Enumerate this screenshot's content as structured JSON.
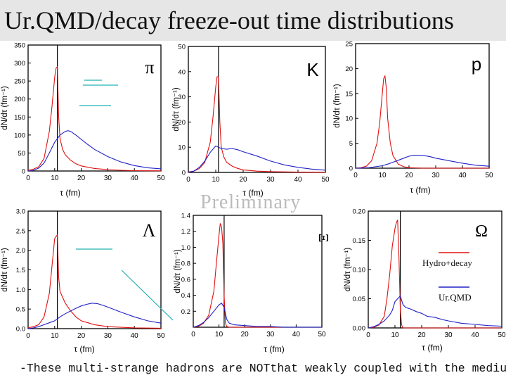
{
  "title": "Ur.QMD/decay freeze-out time distributions",
  "watermark": "Preliminary",
  "footer": "-These multi-strange hadrons are NOTthat weakly coupled with the medium!",
  "legend": {
    "hydro": "Hydro+decay",
    "urqmd": "Ur.QMD"
  },
  "colors": {
    "hydro": "#e01010",
    "urqmd": "#2020c8",
    "vline": "#000000",
    "decor": "#20b0b0"
  },
  "chart_data": [
    {
      "id": "pi",
      "type": "line",
      "particle": "π",
      "xlabel": "τ (fm)",
      "ylabel": "dN/dτ (fm⁻¹)",
      "xlim": [
        0,
        50
      ],
      "ylim": [
        0,
        350
      ],
      "xticks": [
        "0",
        "10",
        "20",
        "30",
        "40",
        "50"
      ],
      "yticks": [
        "0",
        "50",
        "100",
        "150",
        "200",
        "250",
        "300",
        "350"
      ],
      "vline_x": 11,
      "series": [
        {
          "name": "Hydro+decay",
          "x": [
            0,
            2,
            4,
            6,
            8,
            9,
            10,
            10.5,
            11,
            11.5,
            12,
            13,
            14,
            16,
            18,
            20,
            25,
            30,
            35,
            40,
            45,
            50
          ],
          "y": [
            2,
            5,
            12,
            35,
            110,
            180,
            260,
            285,
            290,
            150,
            90,
            60,
            45,
            30,
            20,
            14,
            7,
            4,
            2,
            1,
            0.5,
            0.3
          ]
        },
        {
          "name": "Ur.QMD",
          "x": [
            0,
            2,
            4,
            6,
            8,
            10,
            12,
            14,
            15,
            16,
            18,
            20,
            22,
            25,
            30,
            35,
            40,
            45,
            50
          ],
          "y": [
            0,
            2,
            8,
            22,
            50,
            80,
            100,
            110,
            112,
            110,
            100,
            88,
            76,
            60,
            40,
            25,
            15,
            9,
            6
          ]
        }
      ]
    },
    {
      "id": "k",
      "type": "line",
      "particle": "K",
      "xlabel": "τ (fm)",
      "ylabel": "dN/dτ (fm⁻¹)",
      "xlim": [
        0,
        50
      ],
      "ylim": [
        0,
        50
      ],
      "xticks": [
        "0",
        "10",
        "20",
        "30",
        "40",
        "50"
      ],
      "yticks": [
        "0",
        "10",
        "20",
        "30",
        "40",
        "50"
      ],
      "vline_x": 11,
      "series": [
        {
          "name": "Hydro+decay",
          "x": [
            0,
            2,
            4,
            6,
            8,
            9,
            10,
            10.5,
            11,
            11.5,
            12,
            13,
            14,
            16,
            18,
            20,
            25,
            30,
            40,
            50
          ],
          "y": [
            0.2,
            0.5,
            1.5,
            4,
            12,
            22,
            34,
            38,
            38,
            20,
            10,
            6,
            4,
            2.5,
            1.6,
            1,
            0.5,
            0.3,
            0.1,
            0.05
          ]
        },
        {
          "name": "Ur.QMD",
          "x": [
            0,
            2,
            4,
            6,
            8,
            10,
            12,
            14,
            16,
            18,
            20,
            25,
            30,
            35,
            40,
            45,
            50
          ],
          "y": [
            0,
            0.5,
            2,
            4.5,
            8,
            10.5,
            9.5,
            9.2,
            9.5,
            9,
            8.2,
            6.5,
            4.5,
            3,
            2,
            1.3,
            0.9
          ]
        }
      ]
    },
    {
      "id": "p",
      "type": "line",
      "particle": "p",
      "xlabel": "τ (fm)",
      "ylabel": "dN/dτ (fm⁻¹)",
      "xlim": [
        0,
        50
      ],
      "ylim": [
        0,
        25
      ],
      "xticks": [
        "0",
        "10",
        "20",
        "30",
        "40",
        "50"
      ],
      "yticks": [
        "0",
        "5",
        "10",
        "15",
        "20",
        "25"
      ],
      "vline_x": null,
      "series": [
        {
          "name": "Hydro+decay",
          "x": [
            0,
            2,
            4,
            6,
            8,
            9,
            10,
            10.5,
            11,
            11.5,
            12,
            13,
            14,
            16,
            18,
            20,
            25,
            30,
            40,
            50
          ],
          "y": [
            0,
            0.1,
            0.4,
            1.5,
            5,
            9,
            15,
            18,
            18.5,
            16,
            10,
            5,
            2.5,
            0.8,
            0.3,
            0.1,
            0,
            0,
            0,
            0
          ]
        },
        {
          "name": "Ur.QMD",
          "x": [
            0,
            5,
            10,
            12,
            14,
            16,
            18,
            20,
            22,
            24,
            26,
            28,
            30,
            35,
            40,
            45,
            50
          ],
          "y": [
            0,
            0.1,
            0.5,
            0.8,
            1.2,
            1.6,
            2,
            2.4,
            2.6,
            2.6,
            2.5,
            2.3,
            2,
            1.5,
            1,
            0.6,
            0.4
          ]
        }
      ]
    },
    {
      "id": "lambda",
      "type": "line",
      "particle": "Λ",
      "xlabel": "τ (fm)",
      "ylabel": "dN/dτ (fm⁻¹)",
      "xlim": [
        0,
        50
      ],
      "ylim": [
        0,
        3.0
      ],
      "xticks": [
        "0",
        "10",
        "20",
        "30",
        "40",
        "50"
      ],
      "yticks": [
        "0.0",
        "0.5",
        "1.0",
        "1.5",
        "2.0",
        "2.5",
        "3.0"
      ],
      "vline_x": 11,
      "series": [
        {
          "name": "Hydro+decay",
          "x": [
            0,
            2,
            4,
            6,
            8,
            9,
            10,
            10.5,
            11,
            11.5,
            12,
            13,
            14,
            16,
            18,
            20,
            25,
            30,
            40,
            50
          ],
          "y": [
            0.02,
            0.05,
            0.1,
            0.3,
            0.9,
            1.6,
            2.3,
            2.35,
            2.4,
            1.3,
            0.95,
            0.8,
            0.65,
            0.45,
            0.3,
            0.2,
            0.1,
            0.05,
            0.02,
            0.01
          ]
        },
        {
          "name": "Ur.QMD",
          "x": [
            0,
            2,
            4,
            6,
            8,
            10,
            12,
            14,
            16,
            18,
            20,
            22,
            24,
            26,
            28,
            30,
            35,
            40,
            45,
            50
          ],
          "y": [
            0,
            0.02,
            0.05,
            0.1,
            0.15,
            0.2,
            0.3,
            0.38,
            0.45,
            0.52,
            0.58,
            0.62,
            0.65,
            0.64,
            0.6,
            0.55,
            0.42,
            0.3,
            0.2,
            0.14
          ]
        }
      ]
    },
    {
      "id": "xi",
      "type": "line",
      "particle": "Ξ",
      "xlabel": "τ (fm)",
      "ylabel": "dN/dτ (fm⁻¹)",
      "xlim": [
        0,
        50
      ],
      "ylim": [
        0,
        1.4
      ],
      "xticks": [
        "0",
        "10",
        "20",
        "30",
        "40",
        "50"
      ],
      "yticks": [
        "0.2",
        "0.4",
        "0.6",
        "0.8",
        "1.0",
        "1.2",
        "1.4"
      ],
      "vline_x": 12,
      "series": [
        {
          "name": "Hydro+decay",
          "x": [
            0,
            2,
            4,
            6,
            8,
            9,
            10,
            10.5,
            11,
            11.5,
            12,
            12.5,
            13,
            14,
            16,
            20,
            30,
            40,
            50
          ],
          "y": [
            0,
            0.01,
            0.05,
            0.15,
            0.45,
            0.8,
            1.15,
            1.3,
            1.25,
            1.05,
            0.4,
            0.05,
            0.01,
            0,
            0,
            0,
            0,
            0,
            0
          ]
        },
        {
          "name": "Ur.QMD",
          "x": [
            0,
            2,
            4,
            6,
            8,
            10,
            11,
            12,
            13,
            14,
            16,
            20,
            25,
            30,
            35,
            40,
            45,
            50
          ],
          "y": [
            0,
            0.02,
            0.06,
            0.12,
            0.2,
            0.28,
            0.3,
            0.25,
            0.1,
            0.05,
            0.03,
            0.02,
            0.01,
            0.01,
            0,
            0,
            0,
            0
          ]
        }
      ]
    },
    {
      "id": "omega",
      "type": "line",
      "particle": "Ω",
      "xlabel": "τ (fm)",
      "ylabel": "dN/dτ (fm⁻¹)",
      "xlim": [
        0,
        50
      ],
      "ylim": [
        0,
        0.2
      ],
      "xticks": [
        "0",
        "10",
        "20",
        "30",
        "40",
        "50"
      ],
      "yticks": [
        "0.00",
        "0.05",
        "0.10",
        "0.15",
        "0.20"
      ],
      "vline_x": 12,
      "series": [
        {
          "name": "Hydro+decay",
          "x": [
            0,
            2,
            4,
            6,
            7,
            8,
            9,
            10,
            10.5,
            11,
            11.5,
            12,
            12.5,
            13,
            14,
            20,
            30,
            40,
            50
          ],
          "y": [
            0,
            0.001,
            0.005,
            0.02,
            0.05,
            0.09,
            0.14,
            0.17,
            0.18,
            0.185,
            0.12,
            0.03,
            0.005,
            0,
            0,
            0,
            0,
            0,
            0
          ]
        },
        {
          "name": "Ur.QMD",
          "x": [
            0,
            2,
            4,
            6,
            8,
            9,
            10,
            11,
            12,
            13,
            14,
            16,
            18,
            20,
            22,
            25,
            28,
            30,
            35,
            40,
            45,
            50
          ],
          "y": [
            0,
            0.002,
            0.006,
            0.012,
            0.022,
            0.03,
            0.045,
            0.05,
            0.055,
            0.04,
            0.035,
            0.032,
            0.028,
            0.025,
            0.02,
            0.018,
            0.014,
            0.012,
            0.008,
            0.006,
            0.004,
            0.003
          ]
        }
      ]
    }
  ]
}
